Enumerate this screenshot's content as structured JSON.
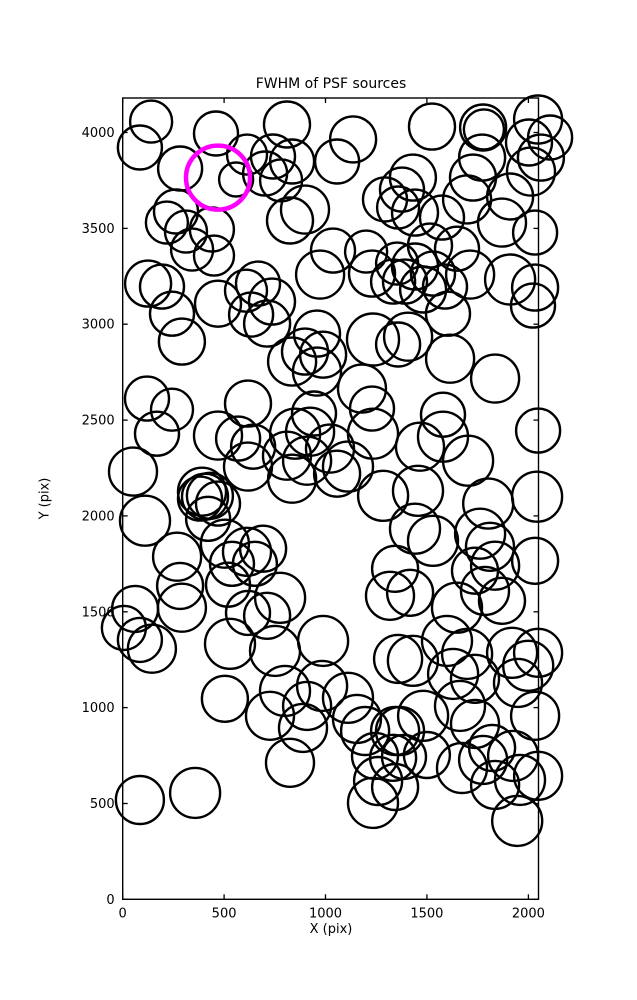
{
  "figure": {
    "title": "FWHM of PSF sources",
    "xlabel": "X (pix)",
    "ylabel": "Y (pix)"
  },
  "chart_data": {
    "type": "scatter",
    "title": "FWHM of PSF sources",
    "xlabel": "X (pix)",
    "ylabel": "Y (pix)",
    "xlim": [
      0,
      2050
    ],
    "ylim": [
      0,
      4180
    ],
    "xticks": [
      0,
      500,
      1000,
      1500,
      2000
    ],
    "yticks": [
      0,
      500,
      1000,
      1500,
      2000,
      2500,
      3000,
      3500,
      4000
    ],
    "grid": false,
    "legend": "none",
    "marker": "open-circle",
    "marker_color": "#000000",
    "highlight_color": "#ff00ff",
    "highlight": {
      "x": 470,
      "y": 3765,
      "r": 32
    },
    "sources": [
      [
        140,
        4057,
        21
      ],
      [
        85,
        3922,
        22
      ],
      [
        460,
        3995,
        22
      ],
      [
        613,
        3885,
        20
      ],
      [
        283,
        3812,
        22
      ],
      [
        559,
        3755,
        17
      ],
      [
        263,
        3588,
        22
      ],
      [
        218,
        3530,
        21
      ],
      [
        312,
        3483,
        21
      ],
      [
        440,
        3494,
        22
      ],
      [
        342,
        3389,
        21
      ],
      [
        810,
        4042,
        23
      ],
      [
        741,
        3875,
        22
      ],
      [
        835,
        3849,
        22
      ],
      [
        702,
        3786,
        22
      ],
      [
        781,
        3750,
        21
      ],
      [
        1136,
        3964,
        23
      ],
      [
        1057,
        3849,
        22
      ],
      [
        1293,
        3651,
        22
      ],
      [
        1358,
        3609,
        21
      ],
      [
        899,
        3598,
        24
      ],
      [
        825,
        3541,
        23
      ],
      [
        1037,
        3384,
        22
      ],
      [
        1200,
        3379,
        21
      ],
      [
        1525,
        4031,
        23
      ],
      [
        1777,
        4026,
        23
      ],
      [
        1781,
        4016,
        20
      ],
      [
        2048,
        4068,
        24
      ],
      [
        2107,
        3974,
        22
      ],
      [
        2003,
        3948,
        23
      ],
      [
        2062,
        3869,
        23
      ],
      [
        2013,
        3796,
        24
      ],
      [
        1910,
        3666,
        23
      ],
      [
        1772,
        3869,
        23
      ],
      [
        1431,
        3765,
        23
      ],
      [
        1377,
        3702,
        22
      ],
      [
        1727,
        3765,
        23
      ],
      [
        1698,
        3651,
        24
      ],
      [
        1441,
        3582,
        23
      ],
      [
        1574,
        3556,
        22
      ],
      [
        1870,
        3530,
        24
      ],
      [
        2033,
        3478,
        22
      ],
      [
        1515,
        3410,
        22
      ],
      [
        1648,
        3394,
        22
      ],
      [
        450,
        3358,
        20
      ],
      [
        125,
        3212,
        23
      ],
      [
        194,
        3196,
        22
      ],
      [
        243,
        3055,
        22
      ],
      [
        470,
        3107,
        23
      ],
      [
        608,
        3175,
        21
      ],
      [
        633,
        3050,
        22
      ],
      [
        292,
        2909,
        23
      ],
      [
        120,
        2612,
        22
      ],
      [
        618,
        2586,
        23
      ],
      [
        973,
        3259,
        24
      ],
      [
        1229,
        3264,
        23
      ],
      [
        1333,
        3222,
        22
      ],
      [
        1353,
        3316,
        21
      ],
      [
        667,
        3212,
        22
      ],
      [
        736,
        3118,
        23
      ],
      [
        712,
        3003,
        23
      ],
      [
        958,
        2951,
        23
      ],
      [
        899,
        2857,
        23
      ],
      [
        988,
        2841,
        23
      ],
      [
        835,
        2805,
        24
      ],
      [
        958,
        2753,
        24
      ],
      [
        1234,
        2920,
        26
      ],
      [
        1358,
        2894,
        22
      ],
      [
        1180,
        2664,
        24
      ],
      [
        1229,
        2560,
        22
      ],
      [
        943,
        2534,
        22
      ],
      [
        1441,
        3301,
        23
      ],
      [
        1530,
        3264,
        22
      ],
      [
        1392,
        3222,
        22
      ],
      [
        1481,
        3181,
        23
      ],
      [
        1589,
        3196,
        22
      ],
      [
        1713,
        3259,
        24
      ],
      [
        1910,
        3233,
        25
      ],
      [
        2033,
        3191,
        23
      ],
      [
        2023,
        3097,
        22
      ],
      [
        1604,
        3055,
        22
      ],
      [
        1407,
        2935,
        24
      ],
      [
        1614,
        2820,
        24
      ],
      [
        1836,
        2716,
        24
      ],
      [
        1579,
        2528,
        22
      ],
      [
        169,
        2429,
        22
      ],
      [
        243,
        2554,
        21
      ],
      [
        51,
        2231,
        24
      ],
      [
        110,
        1975,
        25
      ],
      [
        470,
        2419,
        24
      ],
      [
        569,
        2403,
        22
      ],
      [
        643,
        2361,
        22
      ],
      [
        618,
        2257,
        24
      ],
      [
        391,
        2126,
        24
      ],
      [
        406,
        2100,
        23
      ],
      [
        381,
        2090,
        22
      ],
      [
        430,
        2105,
        23
      ],
      [
        470,
        2064,
        22
      ],
      [
        421,
        1985,
        22
      ],
      [
        504,
        1855,
        24
      ],
      [
        613,
        1813,
        24
      ],
      [
        539,
        1750,
        22
      ],
      [
        652,
        1750,
        22
      ],
      [
        268,
        1787,
        24
      ],
      [
        850,
        2429,
        25
      ],
      [
        924,
        2439,
        24
      ],
      [
        810,
        2314,
        24
      ],
      [
        909,
        2288,
        24
      ],
      [
        1022,
        2351,
        24
      ],
      [
        1111,
        2257,
        25
      ],
      [
        1057,
        2220,
        23
      ],
      [
        835,
        2194,
        24
      ],
      [
        1234,
        2429,
        25
      ],
      [
        1284,
        2105,
        25
      ],
      [
        692,
        1829,
        23
      ],
      [
        1343,
        1724,
        23
      ],
      [
        1466,
        2361,
        24
      ],
      [
        1579,
        2413,
        25
      ],
      [
        1703,
        2288,
        25
      ],
      [
        1456,
        2131,
        25
      ],
      [
        1802,
        2064,
        25
      ],
      [
        2043,
        2100,
        25
      ],
      [
        2048,
        2445,
        22
      ],
      [
        1441,
        1933,
        25
      ],
      [
        1530,
        1870,
        25
      ],
      [
        1762,
        1907,
        25
      ],
      [
        1811,
        1839,
        24
      ],
      [
        1836,
        1740,
        24
      ],
      [
        1737,
        1714,
        23
      ],
      [
        2033,
        1766,
        23
      ],
      [
        283,
        1635,
        23
      ],
      [
        61,
        1515,
        23
      ],
      [
        6,
        1416,
        22
      ],
      [
        85,
        1353,
        22
      ],
      [
        144,
        1307,
        24
      ],
      [
        292,
        1521,
        24
      ],
      [
        519,
        1641,
        22
      ],
      [
        618,
        1494,
        22
      ],
      [
        529,
        1333,
        25
      ],
      [
        504,
        1046,
        23
      ],
      [
        776,
        1573,
        25
      ],
      [
        712,
        1479,
        23
      ],
      [
        751,
        1296,
        25
      ],
      [
        988,
        1348,
        25
      ],
      [
        800,
        1087,
        25
      ],
      [
        909,
        1009,
        24
      ],
      [
        726,
        957,
        24
      ],
      [
        889,
        894,
        24
      ],
      [
        983,
        1113,
        25
      ],
      [
        1111,
        1051,
        25
      ],
      [
        1155,
        941,
        24
      ],
      [
        1318,
        1583,
        24
      ],
      [
        1358,
        1254,
        24
      ],
      [
        1195,
        878,
        24
      ],
      [
        1343,
        878,
        24
      ],
      [
        1417,
        1599,
        23
      ],
      [
        1648,
        1521,
        25
      ],
      [
        1786,
        1609,
        24
      ],
      [
        1870,
        1557,
        23
      ],
      [
        1431,
        1244,
        25
      ],
      [
        1599,
        1348,
        25
      ],
      [
        1698,
        1280,
        25
      ],
      [
        1629,
        1176,
        25
      ],
      [
        1737,
        1150,
        24
      ],
      [
        1920,
        1286,
        25
      ],
      [
        1999,
        1218,
        25
      ],
      [
        2048,
        1286,
        24
      ],
      [
        1949,
        1129,
        24
      ],
      [
        1481,
        957,
        25
      ],
      [
        1367,
        878,
        24
      ],
      [
        1663,
        1009,
        25
      ],
      [
        1737,
        915,
        24
      ],
      [
        2033,
        957,
        24
      ],
      [
        85,
        518,
        24
      ],
      [
        357,
        555,
        25
      ],
      [
        825,
        712,
        24
      ],
      [
        1244,
        748,
        23
      ],
      [
        1333,
        738,
        23
      ],
      [
        1259,
        617,
        24
      ],
      [
        1234,
        503,
        25
      ],
      [
        1343,
        586,
        23
      ],
      [
        1387,
        743,
        22
      ],
      [
        1500,
        753,
        23
      ],
      [
        1673,
        685,
        25
      ],
      [
        1777,
        727,
        24
      ],
      [
        1821,
        790,
        23
      ],
      [
        1925,
        748,
        25
      ],
      [
        1959,
        623,
        25
      ],
      [
        2048,
        644,
        24
      ],
      [
        1945,
        409,
        25
      ],
      [
        1836,
        597,
        24
      ]
    ]
  }
}
